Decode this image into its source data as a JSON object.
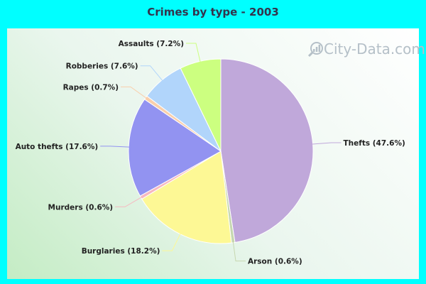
{
  "chart_data": {
    "type": "pie",
    "title": "Crimes by type - 2003",
    "slices": [
      {
        "label": "Thefts (47.6%)",
        "value": 47.6,
        "color": "#c0a8da"
      },
      {
        "label": "Arson (0.6%)",
        "value": 0.6,
        "color": "#c6d7b0"
      },
      {
        "label": "Burglaries (18.2%)",
        "value": 18.2,
        "color": "#fdf895"
      },
      {
        "label": "Murders (0.6%)",
        "value": 0.6,
        "color": "#f7b8c0"
      },
      {
        "label": "Auto thefts (17.6%)",
        "value": 17.6,
        "color": "#9293f1"
      },
      {
        "label": "Rapes (0.7%)",
        "value": 0.7,
        "color": "#f9cfac"
      },
      {
        "label": "Robberies (7.6%)",
        "value": 7.6,
        "color": "#b1d5fb"
      },
      {
        "label": "Assaults (7.2%)",
        "value": 7.2,
        "color": "#ccff80"
      }
    ]
  },
  "watermark": {
    "text": "City-Data.com",
    "icon": "magnifier-chart-icon"
  }
}
